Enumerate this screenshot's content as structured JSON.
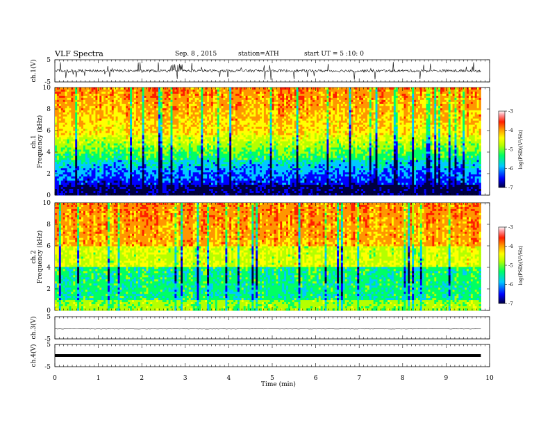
{
  "header": {
    "title": "VLF Spectra",
    "date": "Sep. 8 , 2015",
    "station": "station=ATH",
    "start_ut": "start UT = 5 :10: 0"
  },
  "chart_data": [
    {
      "type": "line",
      "panel": "ch1-waveform",
      "ylabel": "ch.1(V)",
      "ylim": [
        -5,
        5
      ],
      "yticks": [
        5,
        -5
      ]
    },
    {
      "type": "heatmap",
      "panel": "ch1-spectrogram",
      "ylabel": "ch.1 Frequency (kHz)",
      "ylim": [
        0,
        10
      ],
      "yticks": [
        0,
        2,
        4,
        6,
        8,
        10
      ],
      "colorbar": {
        "label": "log(PSD)(V^2/Hz)",
        "range": [
          -7,
          -3
        ],
        "ticks": [
          -3,
          -4,
          -5,
          -6,
          -7
        ]
      }
    },
    {
      "type": "heatmap",
      "panel": "ch2-spectrogram",
      "ylabel": "ch.2 Frequency (kHz)",
      "ylim": [
        0,
        10
      ],
      "yticks": [
        0,
        2,
        4,
        6,
        8,
        10
      ],
      "colorbar": {
        "label": "log(PSD)(V^2/Hz)",
        "range": [
          -7,
          -3
        ],
        "ticks": [
          -3,
          -4,
          -5,
          -6,
          -7
        ]
      }
    },
    {
      "type": "line",
      "panel": "ch3-waveform",
      "ylabel": "ch.3(V)",
      "ylim": [
        -5,
        5
      ],
      "yticks": [
        5,
        -5
      ],
      "level": -0.5
    },
    {
      "type": "line",
      "panel": "ch4-waveform",
      "ylabel": "ch.4(V)",
      "ylim": [
        -5,
        5
      ],
      "yticks": [
        5,
        -5
      ],
      "level": 0
    }
  ],
  "x_axis": {
    "label": "Time (min)",
    "range": [
      0,
      10
    ],
    "ticks": [
      0,
      1,
      2,
      3,
      4,
      5,
      6,
      7,
      8,
      9,
      10
    ],
    "data_end": 9.8
  },
  "colors": {
    "scale": [
      "#000040",
      "#0000ff",
      "#00c8ff",
      "#00ff64",
      "#b4ff00",
      "#ffff00",
      "#ff9600",
      "#ff1e00",
      "#ffffff"
    ]
  }
}
